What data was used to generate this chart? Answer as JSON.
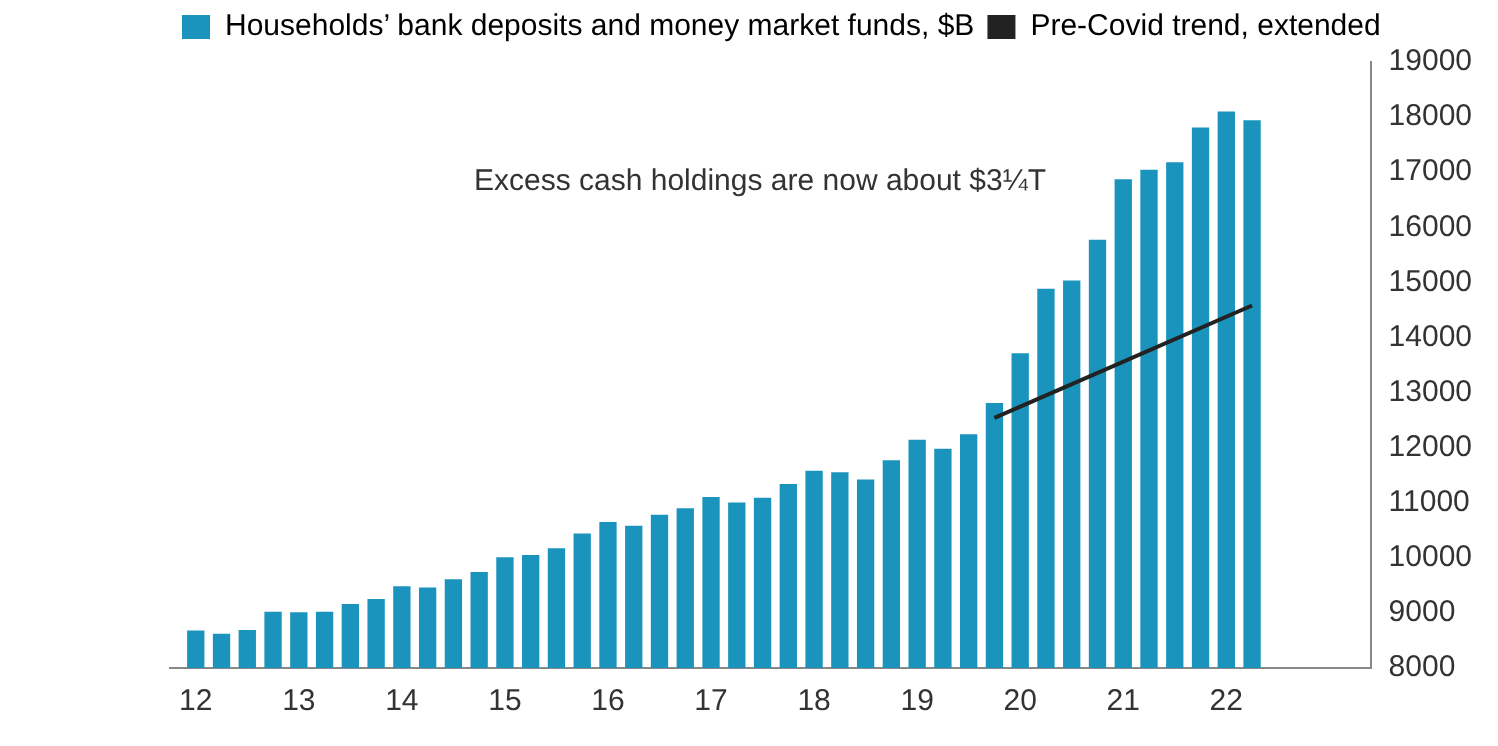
{
  "chart_data": {
    "type": "bar",
    "annotations": [
      "Excess cash holdings are now about $3¼T"
    ],
    "x": [
      2012,
      2012.25,
      2012.5,
      2012.75,
      2013,
      2013.25,
      2013.5,
      2013.75,
      2014,
      2014.25,
      2014.5,
      2014.75,
      2015,
      2015.25,
      2015.5,
      2015.75,
      2016,
      2016.25,
      2016.5,
      2016.75,
      2017,
      2017.25,
      2017.5,
      2017.75,
      2018,
      2018.25,
      2018.5,
      2018.75,
      2019,
      2019.25,
      2019.5,
      2019.75,
      2020,
      2020.25,
      2020.5,
      2020.75,
      2021,
      2021.25,
      2021.5,
      2021.75,
      2022,
      2022.25
    ],
    "series": [
      {
        "name": "Households’ bank deposits and money market funds, $B",
        "color": "#1a94bd",
        "values": [
          8670,
          8610,
          8680,
          9010,
          9000,
          9010,
          9150,
          9240,
          9470,
          9450,
          9600,
          9730,
          10000,
          10040,
          10160,
          10430,
          10640,
          10570,
          10770,
          10890,
          11090,
          10990,
          11080,
          11330,
          11570,
          11540,
          11410,
          11760,
          12130,
          11970,
          12230,
          12800,
          13700,
          14870,
          15020,
          15760,
          16860,
          17030,
          17170,
          17800,
          18090,
          17930
        ]
      },
      {
        "name": "Pre-Covid trend, extended",
        "type": "line",
        "color": "#222222",
        "x": [
          2019.75,
          2022.25
        ],
        "values": [
          12540,
          14580
        ]
      }
    ],
    "xlim": [
      2011.75,
      2023.4
    ],
    "xticks": [
      {
        "value": 2012,
        "label": "12"
      },
      {
        "value": 2013,
        "label": "13"
      },
      {
        "value": 2014,
        "label": "14"
      },
      {
        "value": 2015,
        "label": "15"
      },
      {
        "value": 2016,
        "label": "16"
      },
      {
        "value": 2017,
        "label": "17"
      },
      {
        "value": 2018,
        "label": "18"
      },
      {
        "value": 2019,
        "label": "19"
      },
      {
        "value": 2020,
        "label": "20"
      },
      {
        "value": 2021,
        "label": "21"
      },
      {
        "value": 2022,
        "label": "22"
      }
    ],
    "ylim": [
      8000,
      19000
    ],
    "yticks": [
      8000,
      9000,
      10000,
      11000,
      12000,
      13000,
      14000,
      15000,
      16000,
      17000,
      18000,
      19000
    ],
    "grid": false,
    "legend": "top left"
  }
}
